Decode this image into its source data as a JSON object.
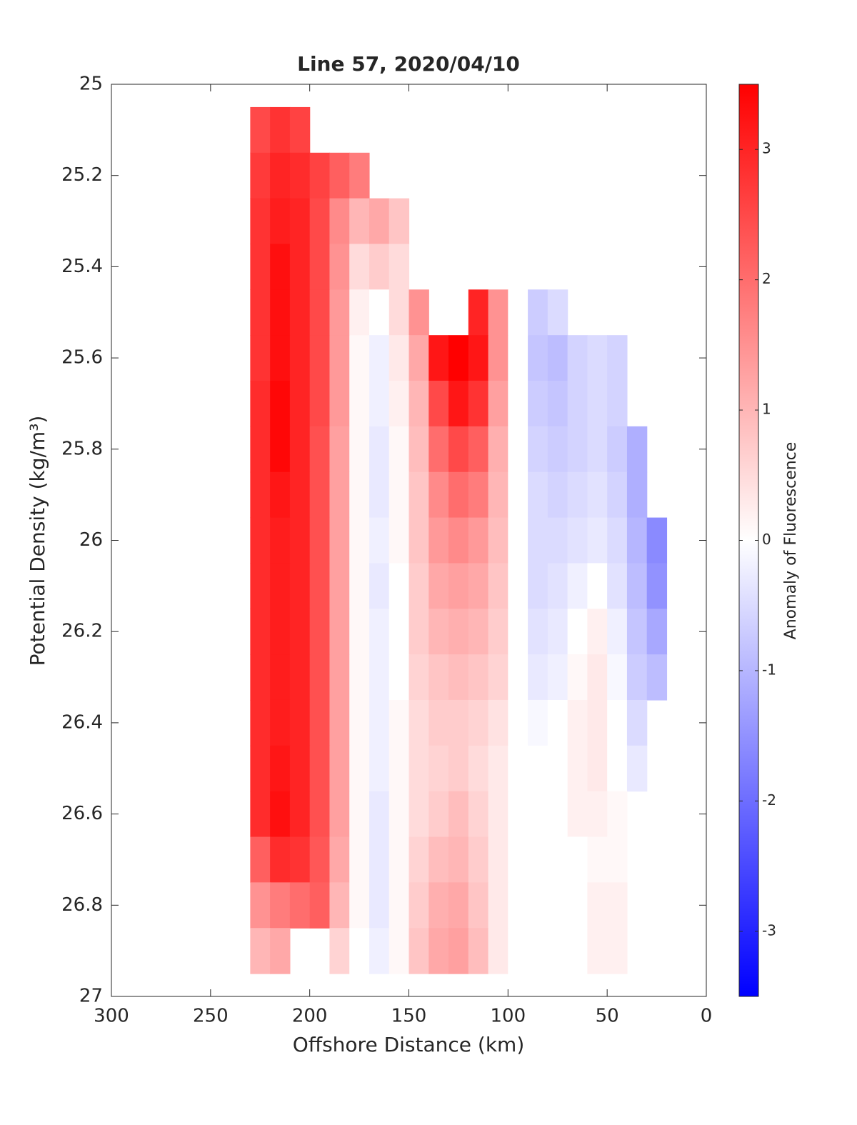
{
  "chart_data": {
    "type": "contour",
    "title": "Line 57, 2020/04/10",
    "xlabel": "Offshore Distance (km)",
    "ylabel": "Potential Density (kg/m³)",
    "colorbar_label": "Anomaly of Fluorescence",
    "xlim": [
      300,
      0
    ],
    "xticks": [
      300,
      250,
      200,
      150,
      100,
      50,
      0
    ],
    "ylim": [
      25,
      27
    ],
    "yticks": [
      25,
      25.2,
      25.4,
      25.6,
      25.8,
      26,
      26.2,
      26.4,
      26.6,
      26.8,
      27
    ],
    "clim": [
      -3.5,
      3.5
    ],
    "cticks": [
      -3,
      -2,
      -1,
      0,
      1,
      2,
      3
    ],
    "negative_color": "#0000ff",
    "zero_color": "#ffffff",
    "positive_color": "#ff0000",
    "x": [
      225,
      215,
      205,
      195,
      185,
      175,
      165,
      155,
      145,
      135,
      125,
      115,
      105,
      95,
      85,
      75,
      65,
      55,
      45,
      35,
      25
    ],
    "y": [
      25.1,
      25.2,
      25.3,
      25.4,
      25.5,
      25.6,
      25.7,
      25.8,
      25.9,
      26.0,
      26.1,
      26.2,
      26.3,
      26.4,
      26.5,
      26.6,
      26.7,
      26.8,
      26.9
    ],
    "z": [
      [
        2.5,
        2.8,
        2.6,
        null,
        null,
        null,
        null,
        null,
        null,
        null,
        null,
        null,
        null,
        null,
        null,
        null,
        null,
        null,
        null,
        null,
        null
      ],
      [
        2.7,
        3.0,
        2.9,
        2.6,
        2.2,
        1.8,
        null,
        null,
        null,
        null,
        null,
        null,
        null,
        null,
        null,
        null,
        null,
        null,
        null,
        null,
        null
      ],
      [
        2.8,
        3.1,
        3.0,
        2.5,
        1.6,
        1.0,
        1.2,
        0.8,
        null,
        null,
        null,
        null,
        null,
        null,
        null,
        null,
        null,
        null,
        null,
        null,
        null
      ],
      [
        2.8,
        3.3,
        3.0,
        2.5,
        1.5,
        0.5,
        0.7,
        0.5,
        null,
        null,
        null,
        null,
        null,
        null,
        null,
        null,
        null,
        null,
        null,
        null,
        null
      ],
      [
        2.8,
        3.3,
        3.0,
        2.5,
        1.4,
        0.2,
        0.0,
        0.5,
        1.5,
        null,
        null,
        3.0,
        1.5,
        0.0,
        -0.7,
        -0.5,
        null,
        null,
        null,
        null,
        null
      ],
      [
        2.8,
        3.3,
        3.0,
        2.5,
        1.4,
        0.1,
        -0.2,
        0.3,
        1.2,
        3.2,
        3.5,
        3.2,
        1.5,
        0.0,
        -0.8,
        -0.9,
        -0.6,
        -0.5,
        -0.6,
        null,
        null
      ],
      [
        2.9,
        3.4,
        3.0,
        2.5,
        1.4,
        0.1,
        -0.2,
        0.2,
        1.0,
        2.5,
        3.2,
        2.8,
        1.3,
        0.0,
        -0.7,
        -0.8,
        -0.6,
        -0.5,
        -0.6,
        null,
        null
      ],
      [
        2.9,
        3.4,
        3.0,
        2.4,
        1.3,
        0.1,
        -0.3,
        0.1,
        0.9,
        2.0,
        2.5,
        2.2,
        1.1,
        0.0,
        -0.6,
        -0.7,
        -0.6,
        -0.5,
        -0.7,
        -1.1,
        null
      ],
      [
        2.9,
        3.2,
        3.0,
        2.4,
        1.3,
        0.1,
        -0.3,
        0.1,
        0.8,
        1.6,
        2.0,
        1.8,
        1.0,
        0.0,
        -0.5,
        -0.6,
        -0.5,
        -0.4,
        -0.6,
        -1.1,
        null
      ],
      [
        2.9,
        3.1,
        3.0,
        2.4,
        1.3,
        0.1,
        -0.2,
        0.1,
        0.8,
        1.4,
        1.6,
        1.4,
        0.9,
        0.0,
        -0.5,
        -0.5,
        -0.4,
        -0.3,
        -0.5,
        -1.0,
        -1.6
      ],
      [
        2.9,
        3.1,
        3.0,
        2.4,
        1.3,
        0.1,
        -0.3,
        0.0,
        0.7,
        1.2,
        1.3,
        1.2,
        0.8,
        0.0,
        -0.5,
        -0.4,
        -0.2,
        0.0,
        -0.4,
        -0.9,
        -1.5
      ],
      [
        2.9,
        3.1,
        3.0,
        2.4,
        1.3,
        0.1,
        -0.2,
        0.0,
        0.7,
        1.0,
        1.1,
        1.0,
        0.7,
        0.0,
        -0.4,
        -0.3,
        0.0,
        0.2,
        -0.2,
        -0.8,
        -1.2
      ],
      [
        2.9,
        3.1,
        3.0,
        2.4,
        1.3,
        0.1,
        -0.2,
        0.0,
        0.6,
        0.8,
        0.9,
        0.8,
        0.6,
        0.0,
        -0.3,
        -0.2,
        0.1,
        0.3,
        -0.1,
        -0.7,
        -0.9
      ],
      [
        2.9,
        3.1,
        3.0,
        2.4,
        1.3,
        0.1,
        -0.2,
        0.1,
        0.5,
        0.7,
        0.7,
        0.6,
        0.4,
        0.0,
        -0.1,
        0.0,
        0.2,
        0.3,
        0.0,
        -0.5,
        null
      ],
      [
        2.9,
        3.2,
        3.0,
        2.4,
        1.3,
        0.1,
        -0.2,
        0.1,
        0.5,
        0.6,
        0.7,
        0.5,
        0.3,
        0.0,
        0.0,
        0.0,
        0.2,
        0.3,
        0.0,
        -0.3,
        null
      ],
      [
        2.9,
        3.3,
        3.0,
        2.4,
        1.3,
        0.1,
        -0.3,
        0.1,
        0.5,
        0.7,
        0.9,
        0.6,
        0.3,
        0.0,
        0.0,
        0.0,
        0.2,
        0.2,
        0.1,
        null,
        null
      ],
      [
        2.2,
        2.9,
        2.8,
        2.3,
        1.2,
        0.1,
        -0.3,
        0.1,
        0.6,
        0.9,
        1.0,
        0.7,
        0.3,
        0.0,
        0.0,
        0.0,
        0.0,
        0.1,
        0.1,
        null,
        null
      ],
      [
        1.5,
        1.8,
        2.0,
        2.2,
        1.0,
        0.1,
        -0.3,
        0.1,
        0.7,
        1.1,
        1.2,
        0.8,
        0.3,
        0.0,
        0.0,
        0.0,
        0.0,
        0.2,
        0.2,
        null,
        null
      ],
      [
        1.0,
        1.2,
        null,
        null,
        0.6,
        0.0,
        -0.2,
        0.1,
        0.8,
        1.2,
        1.3,
        0.9,
        0.3,
        0.0,
        0.0,
        0.0,
        0.0,
        0.2,
        0.2,
        null,
        null
      ]
    ]
  }
}
